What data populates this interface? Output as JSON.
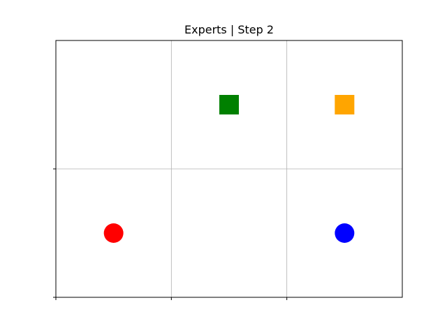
{
  "title": "Experts | Step 2",
  "grid": {
    "columns": 3,
    "rows": 2,
    "gridlines": true,
    "tick_labels": "none"
  },
  "agents": [
    {
      "name": "red-agent",
      "shape": "circle",
      "color": "#ff0000",
      "cell": {
        "col": 0,
        "row": 1
      }
    },
    {
      "name": "blue-agent",
      "shape": "circle",
      "color": "#0000ff",
      "cell": {
        "col": 2,
        "row": 1
      }
    }
  ],
  "goals": [
    {
      "name": "green-goal",
      "shape": "square",
      "color": "#008000",
      "cell": {
        "col": 1,
        "row": 0
      }
    },
    {
      "name": "orange-goal",
      "shape": "square",
      "color": "#ffa500",
      "cell": {
        "col": 2,
        "row": 0
      }
    }
  ]
}
